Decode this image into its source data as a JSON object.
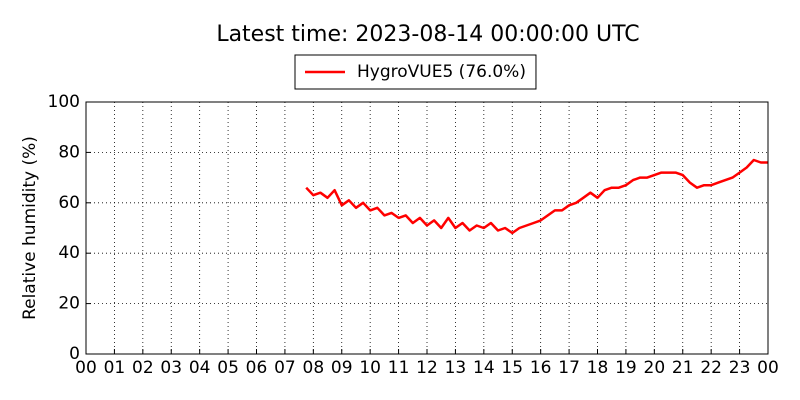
{
  "chart_data": {
    "type": "line",
    "title": "Latest time: 2023-08-14 00:00:00 UTC",
    "y_label": "Relative humidity (%)",
    "x": [
      7.75,
      8,
      8.25,
      8.5,
      8.75,
      9,
      9.25,
      9.5,
      9.75,
      10,
      10.25,
      10.5,
      10.75,
      11,
      11.25,
      11.5,
      11.75,
      12,
      12.25,
      12.5,
      12.75,
      13,
      13.25,
      13.5,
      13.75,
      14,
      14.25,
      14.5,
      14.75,
      15,
      15.25,
      15.5,
      15.75,
      16,
      16.25,
      16.5,
      16.75,
      17,
      17.25,
      17.5,
      17.75,
      18,
      18.25,
      18.5,
      18.75,
      19,
      19.25,
      19.5,
      19.75,
      20,
      20.25,
      20.5,
      20.75,
      21,
      21.25,
      21.5,
      21.75,
      22,
      22.25,
      22.5,
      22.75,
      23,
      23.25,
      23.5,
      23.75,
      24
    ],
    "series": [
      {
        "name": "HygroVUE5 (76.0%)",
        "color": "#ff0000",
        "values": [
          66,
          63,
          64,
          62,
          65,
          59,
          61,
          58,
          60,
          57,
          58,
          55,
          56,
          54,
          55,
          52,
          54,
          51,
          53,
          50,
          54,
          50,
          52,
          49,
          51,
          50,
          52,
          49,
          50,
          48,
          50,
          51,
          52,
          53,
          55,
          57,
          57,
          59,
          60,
          62,
          64,
          62,
          65,
          66,
          66,
          67,
          69,
          70,
          70,
          71,
          72,
          72,
          72,
          71,
          68,
          66,
          67,
          67,
          68,
          69,
          70,
          72,
          74,
          77,
          76,
          76
        ]
      }
    ],
    "xlim": [
      0,
      24
    ],
    "xticks": [
      {
        "value": 0,
        "label": "00"
      },
      {
        "value": 1,
        "label": "01"
      },
      {
        "value": 2,
        "label": "02"
      },
      {
        "value": 3,
        "label": "03"
      },
      {
        "value": 4,
        "label": "04"
      },
      {
        "value": 5,
        "label": "05"
      },
      {
        "value": 6,
        "label": "06"
      },
      {
        "value": 7,
        "label": "07"
      },
      {
        "value": 8,
        "label": "08"
      },
      {
        "value": 9,
        "label": "09"
      },
      10,
      11,
      12,
      13,
      14,
      15,
      16,
      17,
      18,
      19,
      20,
      21,
      22,
      23,
      {
        "value": 24,
        "label": "00"
      }
    ],
    "ylim": [
      0,
      100
    ],
    "yticks": [
      0,
      20,
      40,
      60,
      80,
      100
    ],
    "grid": true,
    "legend": "upper center"
  }
}
